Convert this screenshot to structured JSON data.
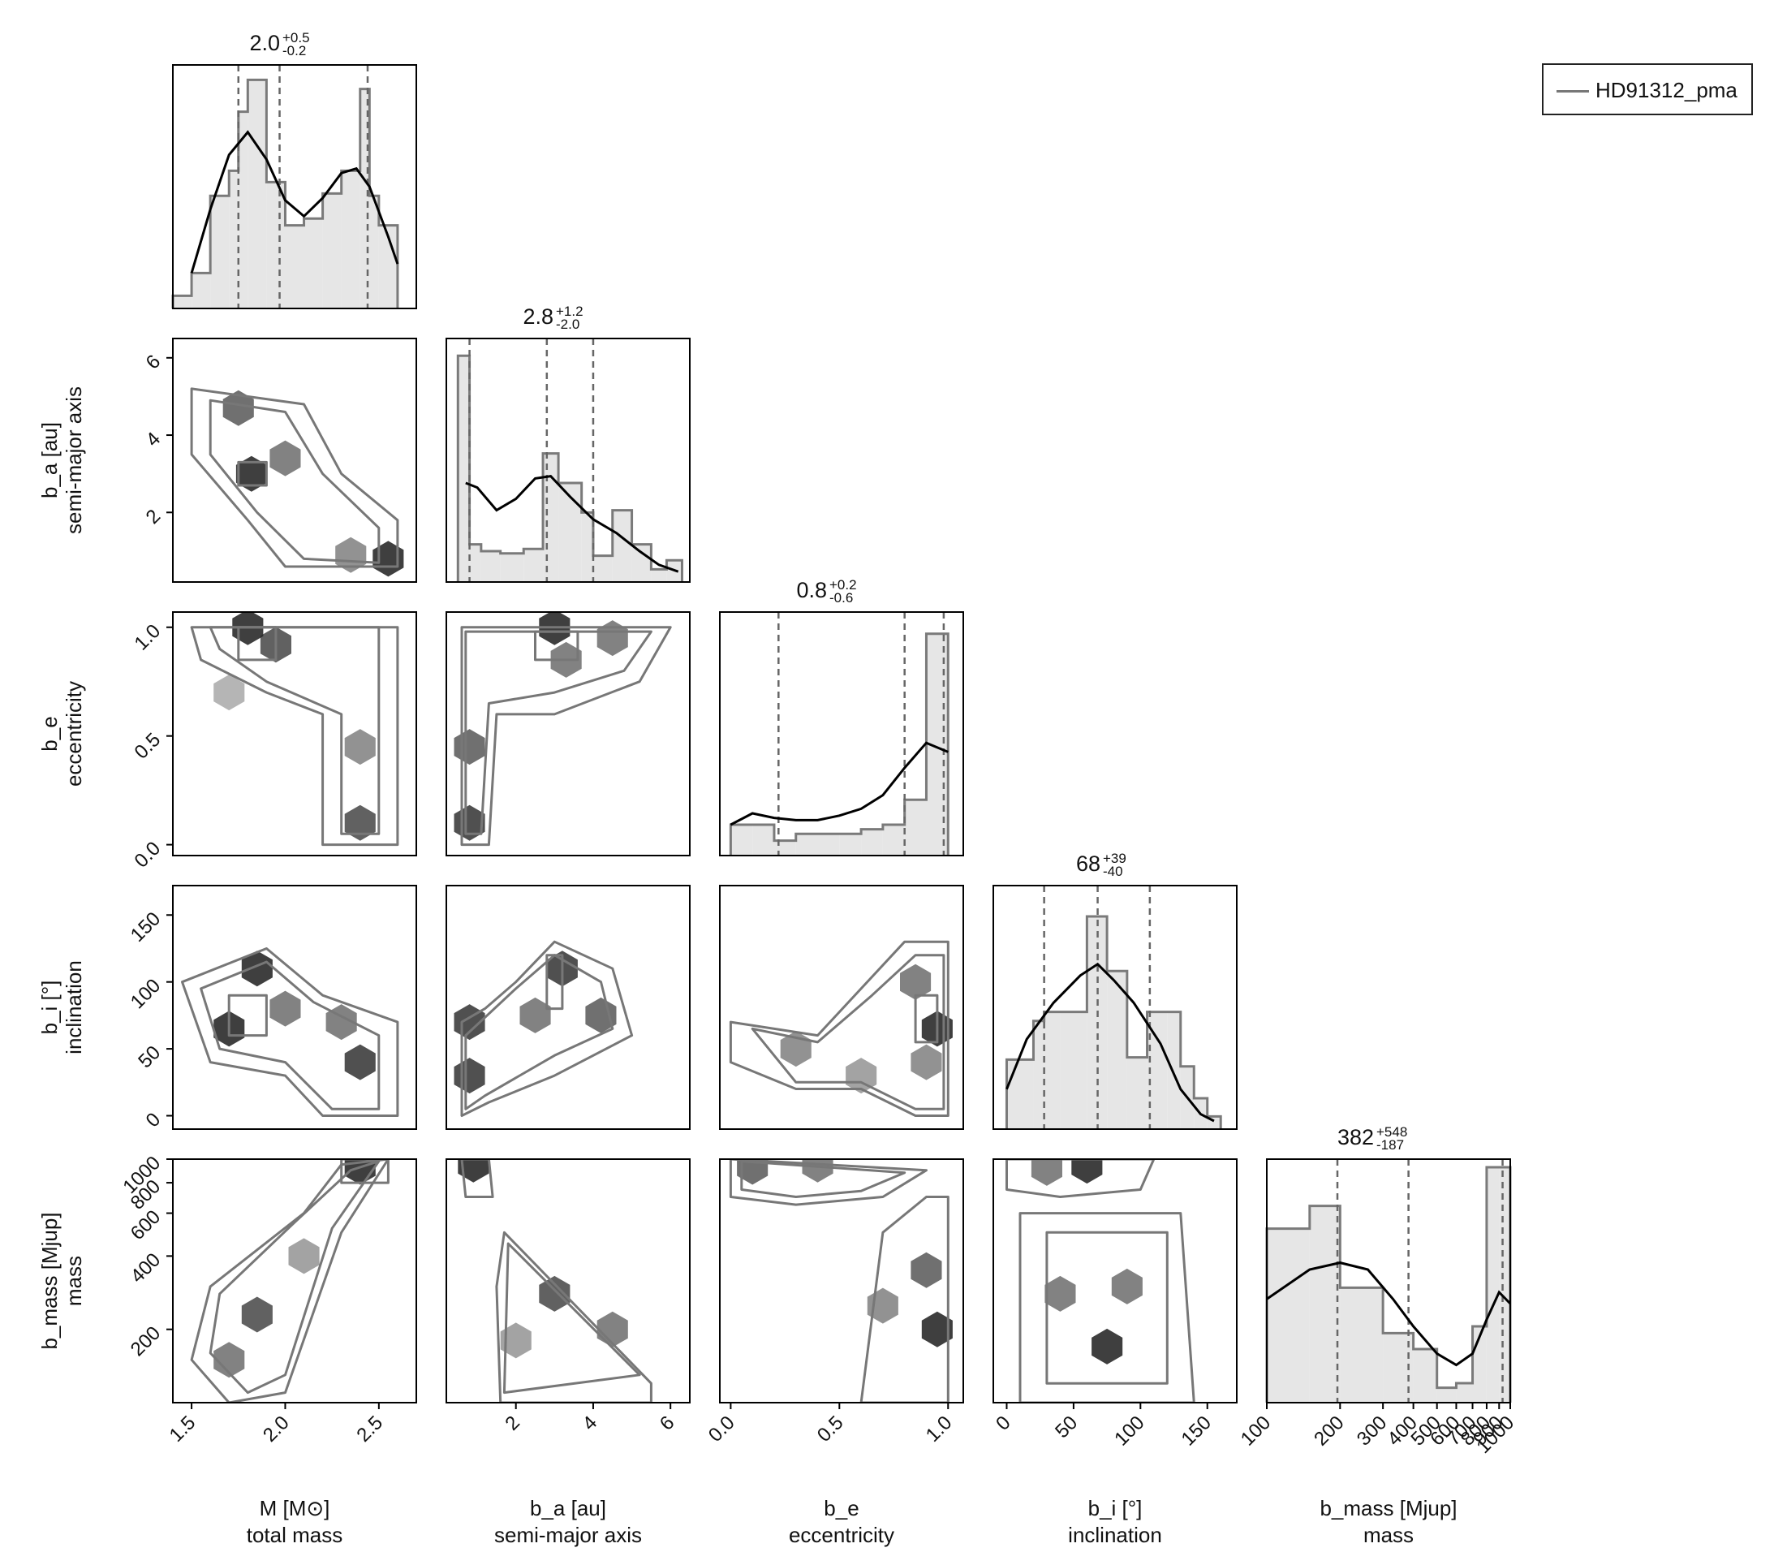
{
  "legend": {
    "label": "HD91312_pma",
    "line_color": "#777777"
  },
  "colors": {
    "hist_fill": "#e6e6e6",
    "hist_step": "#7a7a7a",
    "kde": "#000000",
    "quantile": "#666666",
    "hex_dark": "#2a2a2a",
    "contour": "#777777"
  },
  "chart_data": {
    "type": "corner",
    "params": [
      {
        "key": "M",
        "label": "M [M⊙]",
        "desc": "total mass",
        "range": [
          1.4,
          2.7
        ],
        "ticks": [
          1.5,
          2.0,
          2.5
        ],
        "tick_labels": [
          "1.5",
          "2.0",
          "2.5"
        ],
        "summary": {
          "median": "2.0",
          "plus": "+0.5",
          "minus": "-0.2"
        },
        "quantiles": [
          1.75,
          1.97,
          2.44
        ],
        "hist_edges": [
          1.4,
          1.5,
          1.6,
          1.7,
          1.75,
          1.8,
          1.9,
          2.0,
          2.1,
          2.2,
          2.3,
          2.4,
          2.45,
          2.5,
          2.6
        ],
        "hist_values": [
          0.02,
          0.12,
          0.46,
          0.57,
          0.83,
          0.97,
          0.52,
          0.33,
          0.36,
          0.47,
          0.57,
          0.93,
          0.46,
          0.33
        ],
        "kde": [
          [
            1.5,
            0.12
          ],
          [
            1.6,
            0.4
          ],
          [
            1.7,
            0.64
          ],
          [
            1.8,
            0.74
          ],
          [
            1.9,
            0.62
          ],
          [
            2.0,
            0.44
          ],
          [
            2.1,
            0.37
          ],
          [
            2.2,
            0.45
          ],
          [
            2.3,
            0.56
          ],
          [
            2.38,
            0.58
          ],
          [
            2.45,
            0.5
          ],
          [
            2.55,
            0.28
          ],
          [
            2.6,
            0.16
          ]
        ]
      },
      {
        "key": "b_a",
        "label": "b_a [au]",
        "desc": "semi-major axis",
        "range": [
          0.2,
          6.5
        ],
        "ticks": [
          2,
          4,
          6
        ],
        "tick_labels": [
          "2",
          "4",
          "6"
        ],
        "summary": {
          "median": "2.8",
          "plus": "+1.2",
          "minus": "-2.0"
        },
        "quantiles": [
          0.8,
          2.8,
          4.0
        ],
        "hist_edges": [
          0.5,
          0.8,
          1.1,
          1.6,
          2.2,
          2.7,
          3.1,
          3.7,
          4.0,
          4.5,
          5.0,
          5.5,
          5.9,
          6.3
        ],
        "hist_values": [
          0.96,
          0.13,
          0.1,
          0.09,
          0.11,
          0.53,
          0.4,
          0.27,
          0.08,
          0.28,
          0.13,
          0.02,
          0.06
        ],
        "kde": [
          [
            0.7,
            0.4
          ],
          [
            1.0,
            0.38
          ],
          [
            1.5,
            0.28
          ],
          [
            2.0,
            0.33
          ],
          [
            2.5,
            0.42
          ],
          [
            2.9,
            0.43
          ],
          [
            3.4,
            0.34
          ],
          [
            4.0,
            0.24
          ],
          [
            4.6,
            0.18
          ],
          [
            5.2,
            0.1
          ],
          [
            5.7,
            0.04
          ],
          [
            6.2,
            0.01
          ]
        ]
      },
      {
        "key": "b_e",
        "label": "b_e",
        "desc": "eccentricity",
        "range": [
          -0.05,
          1.07
        ],
        "ticks": [
          0.0,
          0.5,
          1.0
        ],
        "tick_labels": [
          "0.0",
          "0.5",
          "1.0"
        ],
        "summary": {
          "median": "0.8",
          "plus": "+0.2",
          "minus": "-0.6"
        },
        "quantiles": [
          0.22,
          0.8,
          0.98
        ],
        "hist_edges": [
          0.0,
          0.1,
          0.2,
          0.3,
          0.4,
          0.5,
          0.6,
          0.7,
          0.8,
          0.9,
          1.0
        ],
        "hist_values": [
          0.1,
          0.1,
          0.03,
          0.06,
          0.06,
          0.06,
          0.08,
          0.1,
          0.21,
          0.94
        ],
        "kde": [
          [
            0.0,
            0.1
          ],
          [
            0.1,
            0.15
          ],
          [
            0.2,
            0.13
          ],
          [
            0.3,
            0.12
          ],
          [
            0.4,
            0.12
          ],
          [
            0.5,
            0.14
          ],
          [
            0.6,
            0.17
          ],
          [
            0.7,
            0.23
          ],
          [
            0.8,
            0.35
          ],
          [
            0.9,
            0.46
          ],
          [
            1.0,
            0.42
          ]
        ]
      },
      {
        "key": "b_i",
        "label": "b_i [°]",
        "desc": "inclination",
        "range": [
          -10,
          172
        ],
        "ticks": [
          0,
          50,
          100,
          150
        ],
        "tick_labels": [
          "0",
          "50",
          "100",
          "150"
        ],
        "summary": {
          "median": "68",
          "plus": "+39",
          "minus": "-40"
        },
        "quantiles": [
          28,
          68,
          107
        ],
        "hist_edges": [
          0,
          20,
          28,
          40,
          60,
          75,
          90,
          105,
          120,
          130,
          140,
          150,
          160
        ],
        "hist_values": [
          0.27,
          0.44,
          0.48,
          0.48,
          0.9,
          0.66,
          0.28,
          0.48,
          0.48,
          0.24,
          0.1,
          0.02
        ],
        "kde": [
          [
            0,
            0.14
          ],
          [
            15,
            0.36
          ],
          [
            35,
            0.52
          ],
          [
            55,
            0.64
          ],
          [
            68,
            0.69
          ],
          [
            80,
            0.62
          ],
          [
            95,
            0.52
          ],
          [
            115,
            0.34
          ],
          [
            130,
            0.14
          ],
          [
            145,
            0.03
          ],
          [
            155,
            0.0
          ]
        ]
      },
      {
        "key": "b_mass",
        "label": "b_mass [Mjup]",
        "desc": "mass",
        "log": true,
        "range": [
          100,
          1000
        ],
        "ticks": [
          100,
          200,
          300,
          400,
          500,
          600,
          700,
          800,
          900,
          1000
        ],
        "tick_labels": [
          "100",
          "200",
          "300",
          "400",
          "500",
          "600",
          "700",
          "800",
          "900",
          "1000"
        ],
        "y_ticks": [
          200,
          400,
          600,
          800,
          1000
        ],
        "y_tick_labels": [
          "200",
          "400",
          "600",
          "800",
          "1000"
        ],
        "summary": {
          "median": "382",
          "plus": "+548",
          "minus": "-187"
        },
        "quantiles": [
          195,
          382,
          930
        ],
        "hist_edges": [
          100,
          150,
          200,
          300,
          400,
          500,
          600,
          700,
          800,
          900,
          1000
        ],
        "hist_values": [
          0.73,
          0.83,
          0.47,
          0.27,
          0.2,
          0.03,
          0.05,
          0.3,
          1.0,
          1.0
        ],
        "kde": [
          [
            100,
            0.42
          ],
          [
            150,
            0.55
          ],
          [
            200,
            0.58
          ],
          [
            260,
            0.55
          ],
          [
            330,
            0.42
          ],
          [
            400,
            0.3
          ],
          [
            500,
            0.18
          ],
          [
            600,
            0.13
          ],
          [
            700,
            0.18
          ],
          [
            800,
            0.33
          ],
          [
            900,
            0.45
          ],
          [
            1000,
            0.4
          ]
        ]
      }
    ]
  }
}
